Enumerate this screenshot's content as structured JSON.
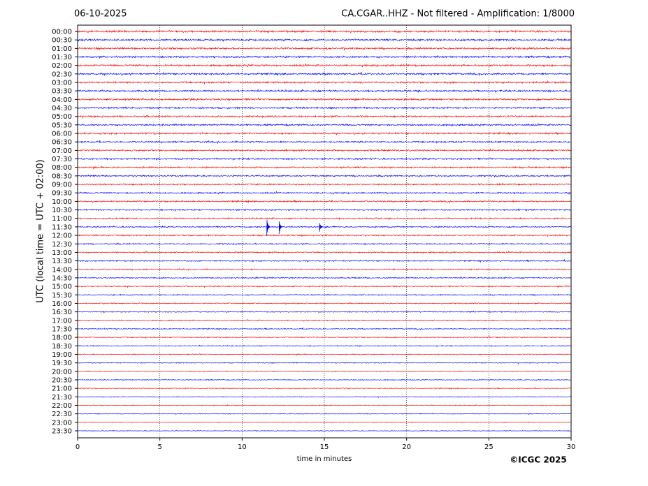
{
  "chart_data": {
    "type": "helicorder",
    "title_left": "06-10-2025",
    "title_right": "CA.CGAR..HHZ - Not filtered - Amplification: 1/8000",
    "y_label": "UTC (local time = UTC + 02:00)",
    "x_label": "time in minutes",
    "copyright": "©ICGC 2025",
    "categories": [
      "00:00",
      "00:30",
      "01:00",
      "01:30",
      "02:00",
      "02:30",
      "03:00",
      "03:30",
      "04:00",
      "04:30",
      "05:00",
      "05:30",
      "06:00",
      "06:30",
      "07:00",
      "07:30",
      "08:00",
      "08:30",
      "09:00",
      "09:30",
      "10:00",
      "10:30",
      "11:00",
      "11:30",
      "12:00",
      "12:30",
      "13:00",
      "13:30",
      "14:00",
      "14:30",
      "15:00",
      "15:30",
      "16:00",
      "16:30",
      "17:00",
      "17:30",
      "18:00",
      "18:30",
      "19:00",
      "19:30",
      "20:00",
      "20:30",
      "21:00",
      "21:30",
      "22:00",
      "22:30",
      "23:00",
      "23:30"
    ],
    "colors": [
      "#ff0000",
      "#0000ff"
    ],
    "xlim": [
      0,
      30
    ],
    "xticks": [
      0,
      5,
      10,
      15,
      20,
      25,
      30
    ],
    "grid": true,
    "events": [
      {
        "row": "11:30",
        "x": 11.5
      },
      {
        "row": "11:30",
        "x": 12.25
      },
      {
        "row": "11:30",
        "x": 14.7
      }
    ]
  }
}
